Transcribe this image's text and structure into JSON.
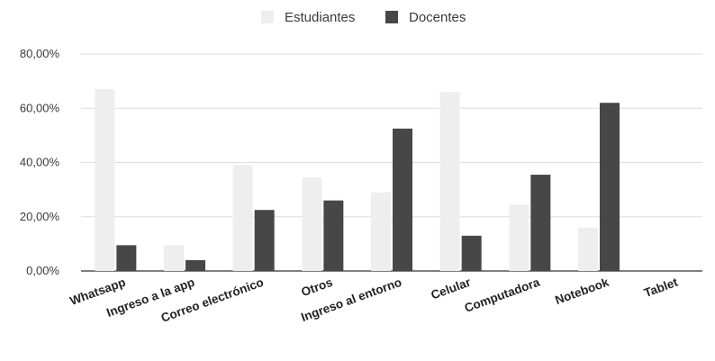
{
  "chart_data": {
    "type": "bar",
    "categories": [
      "Whatsapp",
      "Ingreso a la app",
      "Correo electrónico",
      "Otros",
      "Ingreso al entorno",
      "Celular",
      "Computadora",
      "Notebook",
      "Tablet"
    ],
    "series": [
      {
        "name": "Estudiantes",
        "color": "#eeeeee",
        "values": [
          67,
          9.5,
          39,
          34.5,
          29,
          66,
          24.5,
          16,
          0
        ]
      },
      {
        "name": "Docentes",
        "color": "#474747",
        "values": [
          9.5,
          4,
          22.5,
          26,
          52.5,
          13,
          35.5,
          62,
          0
        ]
      }
    ],
    "yticks": [
      "0,00%",
      "20,00%",
      "40,00%",
      "60,00%",
      "80,00%"
    ],
    "ytick_values": [
      0,
      20,
      40,
      60,
      80
    ],
    "ylim": [
      0,
      80
    ],
    "ylabel": "",
    "xlabel": "",
    "title": "",
    "legend_position": "top-center",
    "gridlines": true
  }
}
